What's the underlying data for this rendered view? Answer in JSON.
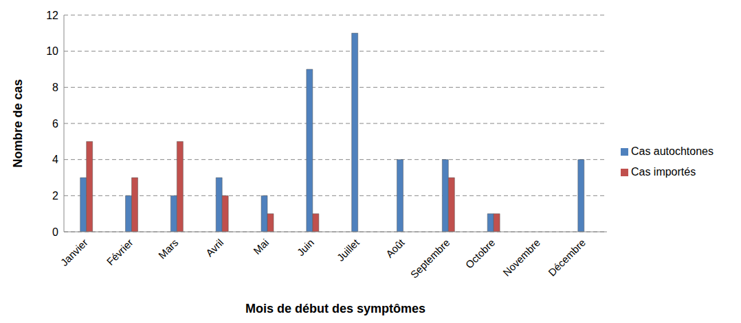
{
  "chart_data": {
    "type": "bar",
    "x_label": "Mois de début des symptômes",
    "y_label": "Nombre de cas",
    "categories": [
      "Janvier",
      "Février",
      "Mars",
      "Avril",
      "Mai",
      "Juin",
      "Juillet",
      "Août",
      "Septembre",
      "Octobre",
      "Novembre",
      "Décembre"
    ],
    "series": [
      {
        "name": "Cas autochtones",
        "color": "#4f81bd",
        "values": [
          3,
          2,
          2,
          3,
          2,
          9,
          11,
          4,
          4,
          1,
          0,
          4
        ]
      },
      {
        "name": "Cas importés",
        "color": "#c0504d",
        "values": [
          5,
          3,
          5,
          2,
          1,
          1,
          0,
          0,
          3,
          1,
          0,
          0
        ]
      }
    ],
    "ylim": [
      0,
      12
    ],
    "yticks": [
      0,
      2,
      4,
      6,
      8,
      10,
      12
    ],
    "grid": true,
    "legend": "right"
  }
}
